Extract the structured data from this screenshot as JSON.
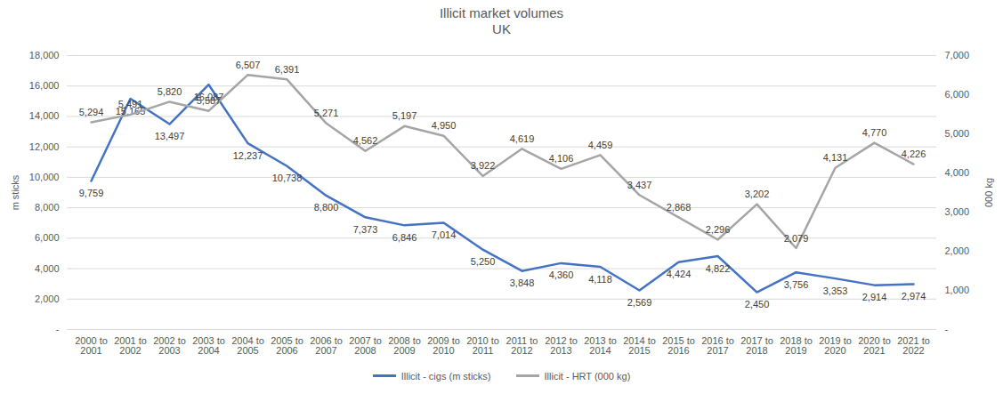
{
  "chart_data": {
    "type": "line",
    "title": "Illicit market volumes",
    "subtitle": "UK",
    "y_label": "m sticks",
    "y2_label": "000 kg",
    "categories": [
      "2000 to 2001",
      "2001 to 2002",
      "2002 to 2003",
      "2003 to 2004",
      "2004 to 2005",
      "2005 to 2006",
      "2006 to 2007",
      "2007 to 2008",
      "2008 to 2009",
      "2009 to 2010",
      "2010 to 2011",
      "2011 to 2012",
      "2012 to 2013",
      "2013 to 2014",
      "2014 to 2015",
      "2015 to 2016",
      "2016 to 2017",
      "2017 to 2018",
      "2018 to 2019",
      "2019 to 2020",
      "2020 to 2021",
      "2021 to 2022"
    ],
    "series": [
      {
        "name": "Illicit - cigs (m sticks)",
        "color": "#4472c4",
        "axis": "y",
        "values": [
          9759,
          15165,
          13497,
          16087,
          12237,
          10738,
          8800,
          7373,
          6846,
          7014,
          5250,
          3848,
          4360,
          4118,
          2569,
          4424,
          4822,
          2450,
          3756,
          3353,
          2914,
          2974
        ],
        "value_labels": [
          "9,759",
          "15,165",
          "13,497",
          "16,087",
          "12,237",
          "10,738",
          "8,800",
          "7,373",
          "6,846",
          "7,014",
          "5,250",
          "3,848",
          "4,360",
          "4,118",
          "2,569",
          "4,424",
          "4,822",
          "2,450",
          "3,756",
          "3,353",
          "2,914",
          "2,974"
        ]
      },
      {
        "name": "Illicit - HRT (000 kg)",
        "color": "#a5a5a5",
        "axis": "y2",
        "values": [
          5294,
          5491,
          5820,
          5587,
          6507,
          6391,
          5271,
          4562,
          5197,
          4950,
          3922,
          4619,
          4106,
          4459,
          3437,
          2868,
          2296,
          3202,
          2079,
          4131,
          4770,
          4226
        ],
        "value_labels": [
          "5,294",
          "5,491",
          "5,820",
          "5,587",
          "6,507",
          "6,391",
          "5,271",
          "4,562",
          "5,197",
          "4,950",
          "3,922",
          "4,619",
          "4,106",
          "4,459",
          "3,437",
          "2,868",
          "2,296",
          "3,202",
          "2,079",
          "4,131",
          "4,770",
          "4,226"
        ]
      }
    ],
    "ylim": [
      0,
      18000
    ],
    "yticks": [
      {
        "value": 0,
        "label": "-"
      },
      {
        "value": 2000,
        "label": "2,000"
      },
      {
        "value": 4000,
        "label": "4,000"
      },
      {
        "value": 6000,
        "label": "6,000"
      },
      {
        "value": 8000,
        "label": "8,000"
      },
      {
        "value": 10000,
        "label": "10,000"
      },
      {
        "value": 12000,
        "label": "12,000"
      },
      {
        "value": 14000,
        "label": "14,000"
      },
      {
        "value": 16000,
        "label": "16,000"
      },
      {
        "value": 18000,
        "label": "18,000"
      }
    ],
    "y2lim": [
      0,
      7000
    ],
    "y2ticks": [
      {
        "value": 0,
        "label": "-"
      },
      {
        "value": 1000,
        "label": "1,000"
      },
      {
        "value": 2000,
        "label": "2,000"
      },
      {
        "value": 3000,
        "label": "3,000"
      },
      {
        "value": 4000,
        "label": "4,000"
      },
      {
        "value": 5000,
        "label": "5,000"
      },
      {
        "value": 6000,
        "label": "6,000"
      },
      {
        "value": 7000,
        "label": "7,000"
      }
    ],
    "grid": true,
    "data_labels": true,
    "legend": "bottom"
  }
}
